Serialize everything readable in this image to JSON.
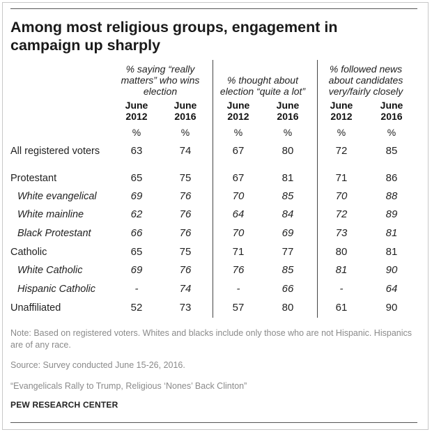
{
  "title": "Among most religious groups, engagement in campaign up sharply",
  "chart_data": {
    "type": "table",
    "title": "Among most religious groups, engagement in campaign up sharply",
    "column_groups": [
      {
        "label": "% saying “really matters” who wins election",
        "lines": [
          "% saying “really",
          "matters” who wins",
          "election"
        ],
        "columns": [
          "June 2012",
          "June 2016"
        ]
      },
      {
        "label": "% thought about election “quite a lot”",
        "lines": [
          "% thought about",
          "election “quite a lot”"
        ],
        "columns": [
          "June 2012",
          "June 2016"
        ]
      },
      {
        "label": "% followed news about candidates very/fairly closely",
        "lines": [
          "% followed news",
          "about candidates",
          "very/fairly closely"
        ],
        "columns": [
          "June 2012",
          "June 2016"
        ]
      }
    ],
    "year_headers": [
      [
        "June",
        "2012"
      ],
      [
        "June",
        "2016"
      ],
      [
        "June",
        "2012"
      ],
      [
        "June",
        "2016"
      ],
      [
        "June",
        "2012"
      ],
      [
        "June",
        "2016"
      ]
    ],
    "unit_row": [
      "%",
      "%",
      "%",
      "%",
      "%",
      "%"
    ],
    "rows": [
      {
        "label": "All registered voters",
        "sub": false,
        "values": [
          "63",
          "74",
          "67",
          "80",
          "72",
          "85"
        ]
      },
      {
        "label": "Protestant",
        "sub": false,
        "values": [
          "65",
          "75",
          "67",
          "81",
          "71",
          "86"
        ]
      },
      {
        "label": "White evangelical",
        "sub": true,
        "values": [
          "69",
          "76",
          "70",
          "85",
          "70",
          "88"
        ]
      },
      {
        "label": "White mainline",
        "sub": true,
        "values": [
          "62",
          "76",
          "64",
          "84",
          "72",
          "89"
        ]
      },
      {
        "label": "Black Protestant",
        "sub": true,
        "values": [
          "66",
          "76",
          "70",
          "69",
          "73",
          "81"
        ]
      },
      {
        "label": "Catholic",
        "sub": false,
        "values": [
          "65",
          "75",
          "71",
          "77",
          "80",
          "81"
        ]
      },
      {
        "label": "White Catholic",
        "sub": true,
        "values": [
          "69",
          "76",
          "76",
          "85",
          "81",
          "90"
        ]
      },
      {
        "label": "Hispanic Catholic",
        "sub": true,
        "values": [
          "-",
          "74",
          "-",
          "66",
          "-",
          "64"
        ]
      },
      {
        "label": "Unaffiliated",
        "sub": false,
        "values": [
          "52",
          "73",
          "57",
          "80",
          "61",
          "90"
        ]
      }
    ]
  },
  "notes": {
    "note": "Note: Based on registered voters. Whites and blacks include only those who are not Hispanic. Hispanics are of any race.",
    "source": "Source: Survey conducted June 15-26, 2016.",
    "report": "“Evangelicals Rally to Trump, Religious ‘Nones’ Back Clinton”",
    "brand": "PEW RESEARCH CENTER"
  }
}
